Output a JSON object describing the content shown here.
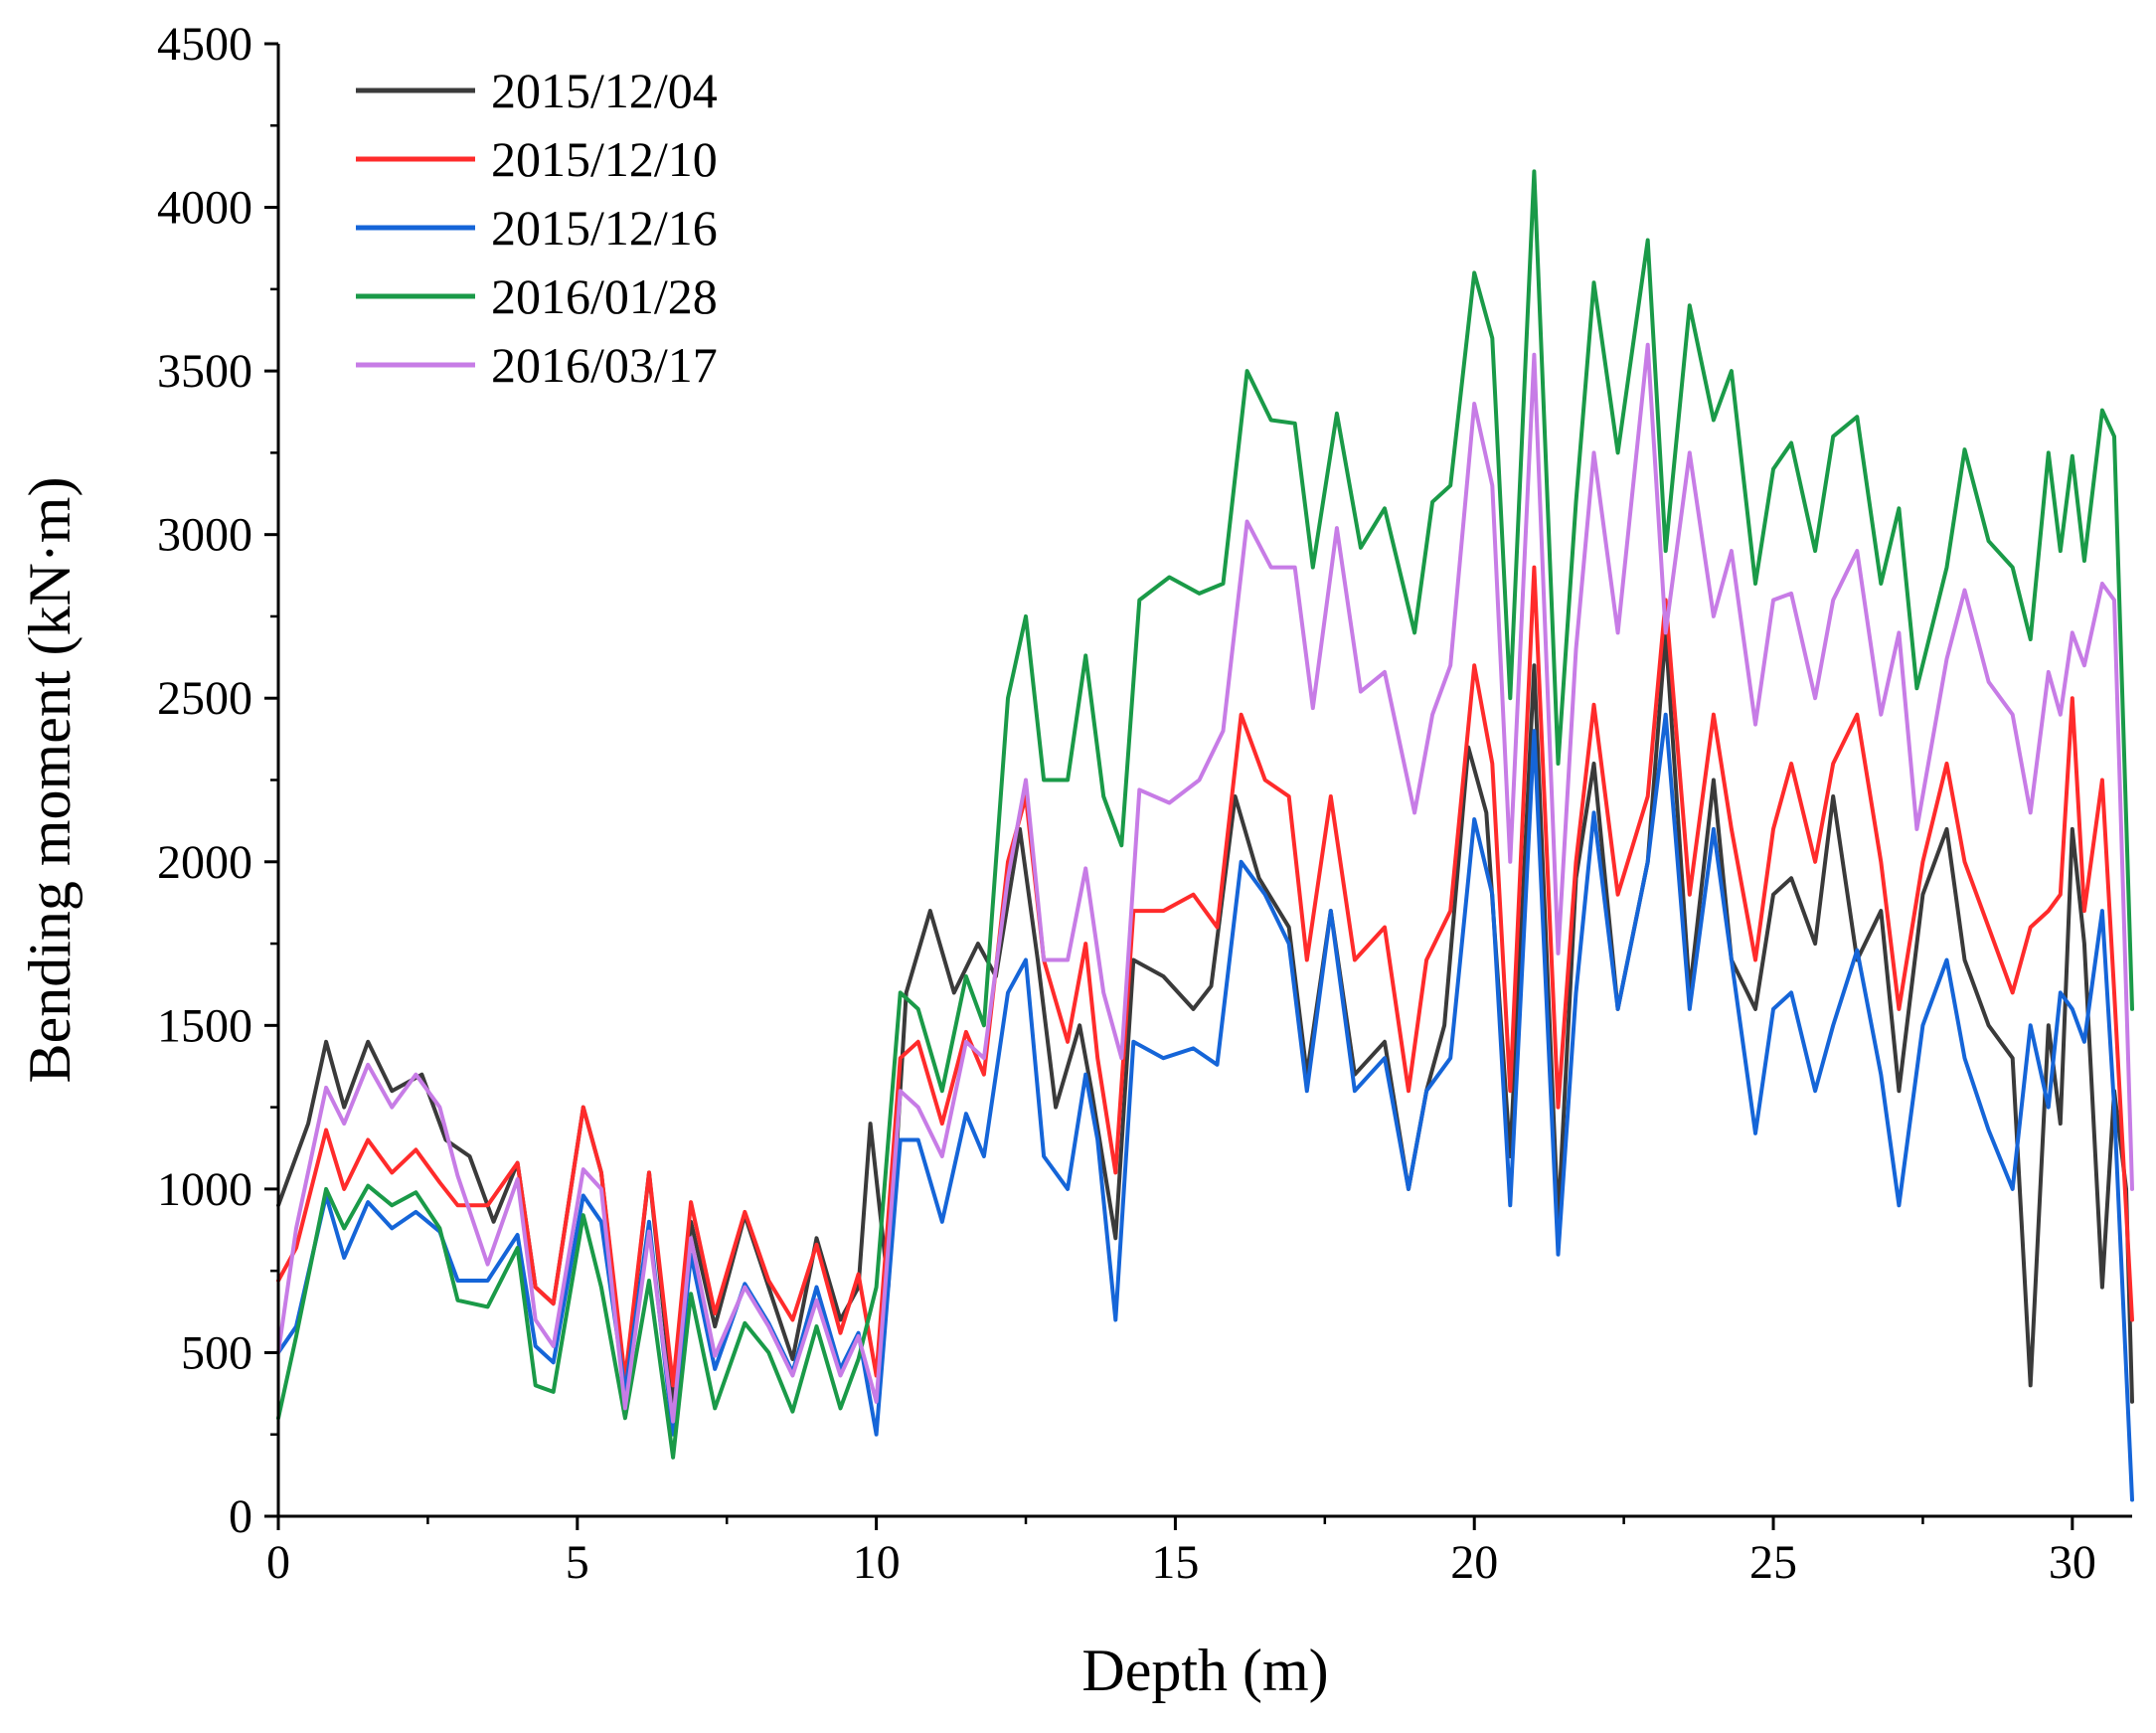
{
  "chart_data": {
    "type": "line",
    "title": "",
    "xlabel": "Depth (m)",
    "ylabel": "Bending moment (kN·m)",
    "xlim": [
      0,
      31
    ],
    "ylim": [
      0,
      4500
    ],
    "xticks": [
      0,
      5,
      10,
      15,
      20,
      25,
      30
    ],
    "yticks": [
      0,
      500,
      1000,
      1500,
      2000,
      2500,
      3000,
      3500,
      4000,
      4500
    ],
    "grid": false,
    "legend_position": "top-left",
    "series": [
      {
        "name": "2015/12/04",
        "color": "#3a3a3a",
        "x": [
          0,
          0.5,
          0.8,
          1.1,
          1.5,
          1.9,
          2.4,
          2.8,
          3.2,
          3.6,
          4.0,
          4.3,
          4.6,
          5.1,
          5.4,
          5.8,
          6.2,
          6.6,
          6.9,
          7.3,
          7.8,
          8.2,
          8.6,
          9.0,
          9.4,
          9.7,
          9.9,
          10.2,
          10.5,
          10.9,
          11.3,
          11.7,
          12.0,
          12.4,
          12.7,
          13.0,
          13.4,
          13.6,
          14.0,
          14.3,
          14.8,
          15.3,
          15.6,
          16.0,
          16.4,
          16.9,
          17.2,
          17.6,
          18.0,
          18.5,
          18.9,
          19.2,
          19.5,
          19.9,
          20.2,
          20.6,
          21.0,
          21.4,
          21.7,
          22.0,
          22.4,
          22.9,
          23.2,
          23.6,
          24.0,
          24.3,
          24.7,
          25.0,
          25.3,
          25.7,
          26.0,
          26.4,
          26.8,
          27.1,
          27.5,
          27.9,
          28.2,
          28.6,
          29.0,
          29.3,
          29.6,
          29.8,
          30.0,
          30.2,
          30.5,
          30.7,
          30.9,
          31.0
        ],
        "y": [
          950,
          1200,
          1450,
          1250,
          1450,
          1300,
          1350,
          1150,
          1100,
          900,
          1080,
          700,
          650,
          1250,
          1050,
          400,
          1050,
          350,
          900,
          580,
          920,
          700,
          480,
          850,
          600,
          700,
          1200,
          700,
          1600,
          1850,
          1600,
          1750,
          1650,
          2100,
          1700,
          1250,
          1500,
          1300,
          850,
          1700,
          1650,
          1550,
          1620,
          2200,
          1950,
          1800,
          1350,
          1850,
          1350,
          1450,
          1000,
          1300,
          1500,
          2350,
          2150,
          1100,
          2600,
          900,
          1950,
          2300,
          1550,
          2000,
          2700,
          1600,
          2250,
          1700,
          1550,
          1900,
          1950,
          1750,
          2200,
          1700,
          1850,
          1300,
          1900,
          2100,
          1700,
          1500,
          1400,
          400,
          1500,
          1200,
          2100,
          1750,
          700,
          1300,
          1000,
          350
        ]
      },
      {
        "name": "2015/12/10",
        "color": "#ff2b2b",
        "x": [
          0,
          0.3,
          0.8,
          1.1,
          1.5,
          1.9,
          2.3,
          2.7,
          3.0,
          3.5,
          4.0,
          4.3,
          4.6,
          5.1,
          5.4,
          5.8,
          6.2,
          6.6,
          6.9,
          7.3,
          7.8,
          8.2,
          8.6,
          9.0,
          9.4,
          9.7,
          10.0,
          10.4,
          10.7,
          11.1,
          11.5,
          11.8,
          12.2,
          12.5,
          12.8,
          13.2,
          13.5,
          13.7,
          14.0,
          14.3,
          14.8,
          15.3,
          15.7,
          16.1,
          16.5,
          16.9,
          17.2,
          17.6,
          18.0,
          18.5,
          18.9,
          19.2,
          19.6,
          20.0,
          20.3,
          20.6,
          21.0,
          21.4,
          21.7,
          22.0,
          22.4,
          22.9,
          23.2,
          23.6,
          24.0,
          24.3,
          24.7,
          25.0,
          25.3,
          25.7,
          26.0,
          26.4,
          26.8,
          27.1,
          27.5,
          27.9,
          28.2,
          28.6,
          29.0,
          29.3,
          29.6,
          29.8,
          30.0,
          30.2,
          30.5,
          30.7,
          31.0
        ],
        "y": [
          720,
          820,
          1180,
          1000,
          1150,
          1050,
          1120,
          1020,
          950,
          950,
          1080,
          700,
          650,
          1250,
          1050,
          420,
          1050,
          400,
          960,
          620,
          930,
          720,
          600,
          830,
          560,
          740,
          430,
          1400,
          1450,
          1200,
          1480,
          1350,
          2000,
          2200,
          1700,
          1450,
          1750,
          1400,
          1050,
          1850,
          1850,
          1900,
          1800,
          2450,
          2250,
          2200,
          1700,
          2200,
          1700,
          1800,
          1300,
          1700,
          1850,
          2600,
          2300,
          1300,
          2900,
          1250,
          2000,
          2480,
          1900,
          2200,
          2800,
          1900,
          2450,
          2100,
          1700,
          2100,
          2300,
          2000,
          2300,
          2450,
          2000,
          1550,
          2000,
          2300,
          2000,
          1800,
          1600,
          1800,
          1850,
          1900,
          2500,
          1850,
          2250,
          1600,
          600
        ]
      },
      {
        "name": "2015/12/16",
        "color": "#1565d8",
        "x": [
          0,
          0.3,
          0.8,
          1.1,
          1.5,
          1.9,
          2.3,
          2.7,
          3.0,
          3.5,
          4.0,
          4.3,
          4.6,
          5.1,
          5.4,
          5.8,
          6.2,
          6.6,
          6.9,
          7.3,
          7.8,
          8.2,
          8.6,
          9.0,
          9.4,
          9.7,
          10.0,
          10.4,
          10.7,
          11.1,
          11.5,
          11.8,
          12.2,
          12.5,
          12.8,
          13.2,
          13.5,
          13.7,
          14.0,
          14.3,
          14.8,
          15.3,
          15.7,
          16.1,
          16.5,
          16.9,
          17.2,
          17.6,
          18.0,
          18.5,
          18.9,
          19.2,
          19.6,
          20.0,
          20.3,
          20.6,
          21.0,
          21.4,
          21.7,
          22.0,
          22.4,
          22.9,
          23.2,
          23.6,
          24.0,
          24.3,
          24.7,
          25.0,
          25.3,
          25.7,
          26.0,
          26.4,
          26.8,
          27.1,
          27.5,
          27.9,
          28.2,
          28.6,
          29.0,
          29.3,
          29.6,
          29.8,
          30.0,
          30.2,
          30.5,
          30.7,
          31.0
        ],
        "y": [
          500,
          580,
          980,
          790,
          960,
          880,
          930,
          870,
          720,
          720,
          860,
          520,
          470,
          980,
          900,
          380,
          900,
          250,
          800,
          450,
          710,
          590,
          440,
          700,
          450,
          560,
          250,
          1150,
          1150,
          900,
          1230,
          1100,
          1600,
          1700,
          1100,
          1000,
          1350,
          1150,
          600,
          1450,
          1400,
          1430,
          1380,
          2000,
          1900,
          1750,
          1300,
          1850,
          1300,
          1400,
          1000,
          1300,
          1400,
          2130,
          1900,
          950,
          2400,
          800,
          1600,
          2150,
          1550,
          2000,
          2450,
          1550,
          2100,
          1700,
          1170,
          1550,
          1600,
          1300,
          1500,
          1730,
          1350,
          950,
          1500,
          1700,
          1400,
          1180,
          1000,
          1500,
          1250,
          1600,
          1550,
          1450,
          1850,
          1250,
          50
        ]
      },
      {
        "name": "2016/01/28",
        "color": "#1a9a48",
        "x": [
          0,
          0.3,
          0.8,
          1.1,
          1.5,
          1.9,
          2.3,
          2.7,
          3.0,
          3.5,
          4.0,
          4.3,
          4.6,
          5.1,
          5.4,
          5.8,
          6.2,
          6.6,
          6.9,
          7.3,
          7.8,
          8.2,
          8.6,
          9.0,
          9.4,
          9.7,
          10.0,
          10.4,
          10.7,
          11.1,
          11.5,
          11.8,
          12.2,
          12.5,
          12.8,
          13.2,
          13.5,
          13.8,
          14.1,
          14.4,
          14.9,
          15.4,
          15.8,
          16.2,
          16.6,
          17.0,
          17.3,
          17.7,
          18.1,
          18.5,
          19.0,
          19.3,
          19.6,
          20.0,
          20.3,
          20.6,
          21.0,
          21.4,
          21.7,
          22.0,
          22.4,
          22.9,
          23.2,
          23.6,
          24.0,
          24.3,
          24.7,
          25.0,
          25.3,
          25.7,
          26.0,
          26.4,
          26.8,
          27.1,
          27.4,
          27.9,
          28.2,
          28.6,
          29.0,
          29.3,
          29.6,
          29.8,
          30.0,
          30.2,
          30.5,
          30.7,
          31.0
        ],
        "y": [
          300,
          550,
          1000,
          880,
          1010,
          950,
          990,
          880,
          660,
          640,
          820,
          400,
          380,
          920,
          700,
          300,
          720,
          180,
          680,
          330,
          590,
          500,
          320,
          580,
          330,
          480,
          700,
          1600,
          1550,
          1300,
          1650,
          1500,
          2500,
          2750,
          2250,
          2250,
          2630,
          2200,
          2050,
          2800,
          2870,
          2820,
          2850,
          3500,
          3350,
          3340,
          2900,
          3370,
          2960,
          3080,
          2700,
          3100,
          3150,
          3800,
          3600,
          2500,
          4110,
          2300,
          3100,
          3770,
          3250,
          3900,
          2950,
          3700,
          3350,
          3500,
          2850,
          3200,
          3280,
          2950,
          3300,
          3360,
          2850,
          3080,
          2530,
          2900,
          3260,
          2980,
          2900,
          2680,
          3250,
          2950,
          3240,
          2920,
          3380,
          3300,
          1550
        ]
      },
      {
        "name": "2016/03/17",
        "color": "#c77ce6",
        "x": [
          0,
          0.3,
          0.8,
          1.1,
          1.5,
          1.9,
          2.3,
          2.7,
          3.0,
          3.5,
          4.0,
          4.3,
          4.6,
          5.1,
          5.4,
          5.8,
          6.2,
          6.6,
          6.9,
          7.3,
          7.8,
          8.2,
          8.6,
          9.0,
          9.4,
          9.7,
          10.0,
          10.4,
          10.7,
          11.1,
          11.5,
          11.8,
          12.2,
          12.5,
          12.8,
          13.2,
          13.5,
          13.8,
          14.1,
          14.4,
          14.9,
          15.4,
          15.8,
          16.2,
          16.6,
          17.0,
          17.3,
          17.7,
          18.1,
          18.5,
          19.0,
          19.3,
          19.6,
          20.0,
          20.3,
          20.6,
          21.0,
          21.4,
          21.7,
          22.0,
          22.4,
          22.9,
          23.2,
          23.6,
          24.0,
          24.3,
          24.7,
          25.0,
          25.3,
          25.7,
          26.0,
          26.4,
          26.8,
          27.1,
          27.4,
          27.9,
          28.2,
          28.6,
          29.0,
          29.3,
          29.6,
          29.8,
          30.0,
          30.2,
          30.5,
          30.7,
          31.0
        ],
        "y": [
          500,
          880,
          1310,
          1200,
          1380,
          1250,
          1350,
          1250,
          1040,
          770,
          1030,
          600,
          520,
          1060,
          1000,
          330,
          870,
          290,
          850,
          490,
          700,
          580,
          430,
          660,
          430,
          550,
          350,
          1300,
          1250,
          1100,
          1450,
          1400,
          1950,
          2250,
          1700,
          1700,
          1980,
          1600,
          1400,
          2220,
          2180,
          2250,
          2400,
          3040,
          2900,
          2900,
          2470,
          3020,
          2520,
          2580,
          2150,
          2450,
          2600,
          3400,
          3150,
          2000,
          3550,
          1720,
          2650,
          3250,
          2700,
          3580,
          2700,
          3250,
          2750,
          2950,
          2420,
          2800,
          2820,
          2500,
          2800,
          2950,
          2450,
          2700,
          2100,
          2620,
          2830,
          2550,
          2450,
          2150,
          2580,
          2450,
          2700,
          2600,
          2850,
          2800,
          1000
        ]
      }
    ]
  }
}
